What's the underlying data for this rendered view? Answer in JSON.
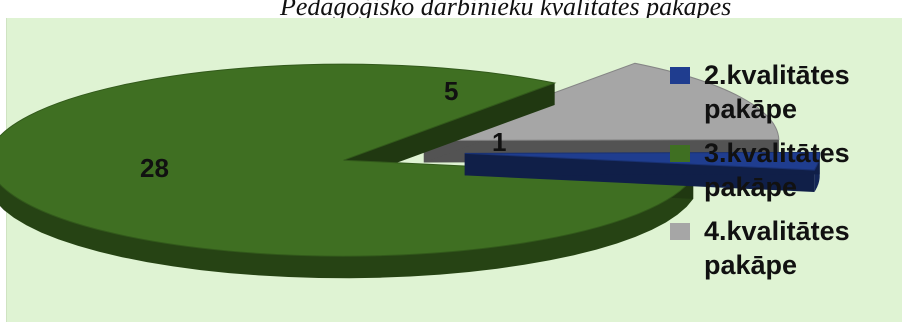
{
  "chart_data": {
    "type": "pie",
    "title": "Pedagoģisko darbinieku kvalitātes pakāpes",
    "categories": [
      "2.kvalitātes pakāpe",
      "3.kvalitātes pakāpe",
      "4.kvalitātes pakāpe"
    ],
    "values": [
      1,
      28,
      5
    ],
    "data_labels": [
      "1",
      "28",
      "5"
    ],
    "colors": [
      "#1f3d8f",
      "#3f6f22",
      "#a6a6a6"
    ],
    "exploded": true,
    "three_d": true,
    "legend_position": "right"
  }
}
